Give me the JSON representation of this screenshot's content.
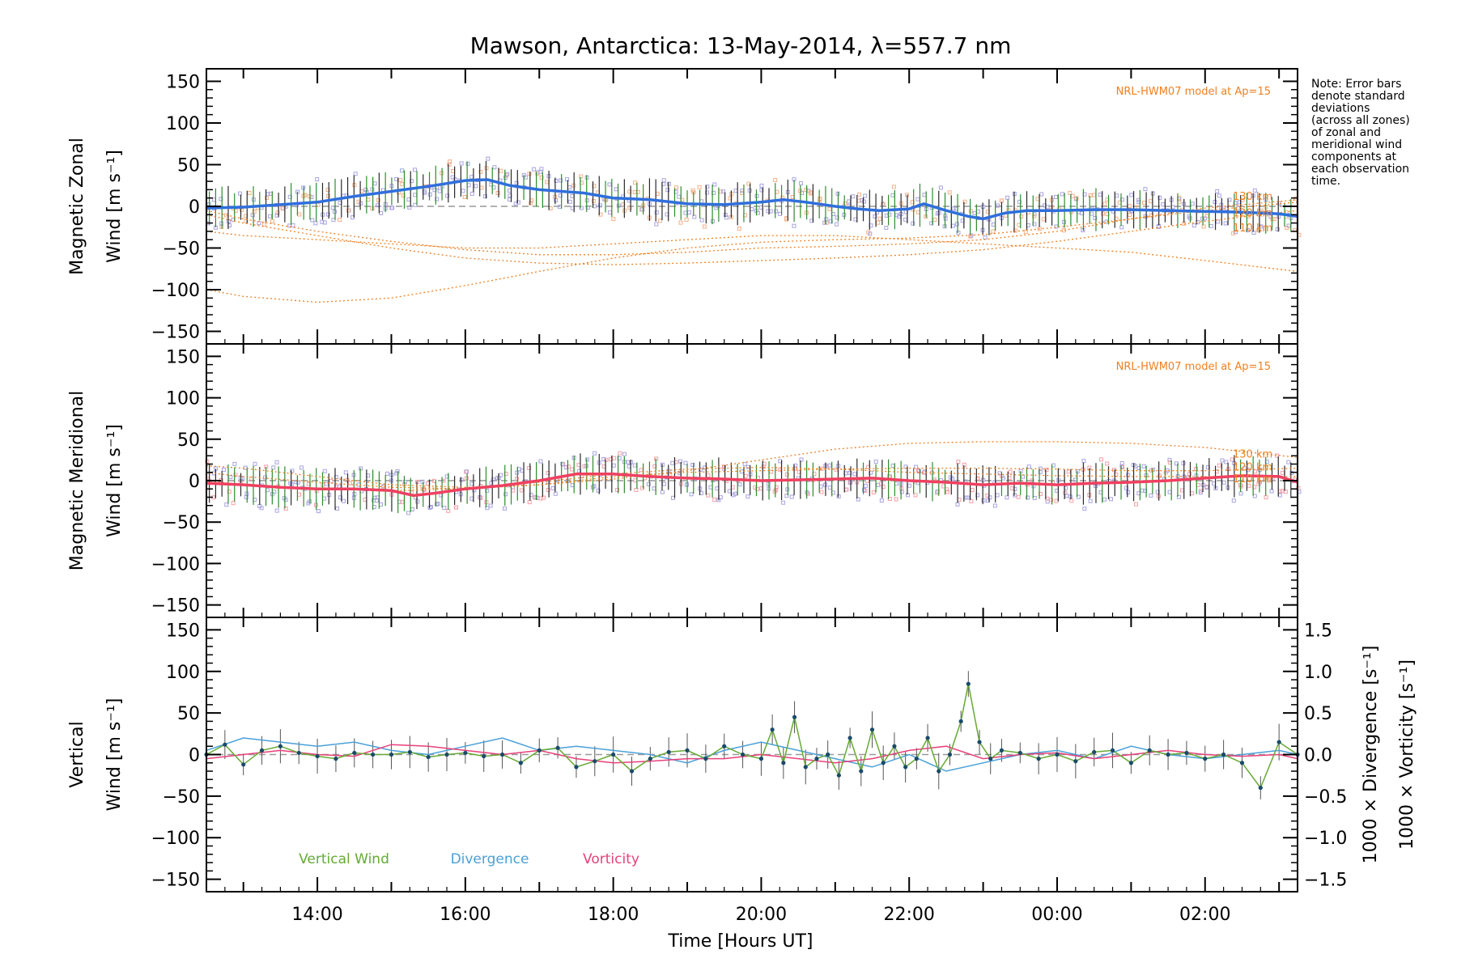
{
  "title": "Mawson, Antarctica: 13-May-2014, λ=557.7 nm",
  "note_lines": [
    "Note: Error bars",
    "denote standard",
    "deviations",
    "(across all zones)",
    "of zonal and",
    "meridional wind",
    "components at",
    "each observation",
    "time."
  ],
  "x_tick_labels": [
    "14:00",
    "16:00",
    "18:00",
    "20:00",
    "22:00",
    "00:00",
    "02:00"
  ],
  "x_label": "Time [Hours UT]",
  "colors": {
    "zonal": "#2f6fdc",
    "meridional": "#f04060",
    "vertical": "#66aa33",
    "divergence": "#4aa0d8",
    "vorticity": "#e8407a",
    "model": "#f08020",
    "scatter": "#a8a4e0",
    "errbar_dark": "#2a2a2a",
    "errbar_green": "#2e8b2e"
  },
  "chart_data": [
    {
      "type": "line",
      "panel": "zonal",
      "ylabel_line1": "Magnetic Zonal",
      "ylabel_line2": "Wind [m s⁻¹]",
      "model_label": "NRL-HWM07 model at Ap=15",
      "model_alt_labels": [
        "130 km",
        "120 km",
        "110 km"
      ],
      "ylim": [
        -165,
        165
      ],
      "xlim": [
        12.5,
        27.25
      ],
      "y_tick_labels": [
        "150",
        "100",
        "50",
        "0",
        "−50",
        "−100",
        "−150"
      ],
      "series": [
        {
          "name": "zonal",
          "x": [
            12.5,
            13,
            13.5,
            14,
            14.5,
            15,
            15.5,
            16,
            16.3,
            16.6,
            17,
            17.3,
            17.6,
            18,
            18.5,
            19,
            19.5,
            20,
            20.3,
            20.6,
            21,
            21.3,
            21.6,
            22,
            22.2,
            22.5,
            22.8,
            23,
            23.3,
            23.6,
            24,
            24.5,
            25,
            25.5,
            26,
            26.5,
            27,
            27.25
          ],
          "y": [
            -2,
            -1,
            2,
            5,
            12,
            18,
            24,
            31,
            32,
            25,
            20,
            18,
            16,
            10,
            8,
            3,
            2,
            5,
            8,
            5,
            0,
            -3,
            -5,
            -3,
            3,
            -5,
            -12,
            -15,
            -8,
            -5,
            -5,
            -4,
            -4,
            -5,
            -6,
            -7,
            -9,
            -12
          ]
        }
      ],
      "model_curves": [
        {
          "x": [
            12.5,
            13,
            14,
            15,
            16,
            17,
            18,
            19,
            20,
            21,
            22,
            23,
            24,
            25,
            26,
            27.25
          ],
          "y": [
            -100,
            -108,
            -115,
            -110,
            -95,
            -78,
            -62,
            -50,
            -43,
            -40,
            -38,
            -34,
            -25,
            -15,
            -5,
            5
          ]
        },
        {
          "x": [
            12.5,
            13,
            14,
            15,
            16,
            17,
            18,
            19,
            20,
            21,
            22,
            23,
            24,
            25,
            26,
            27.25
          ],
          "y": [
            -5,
            -15,
            -30,
            -42,
            -52,
            -58,
            -58,
            -55,
            -50,
            -48,
            -45,
            -40,
            -30,
            -15,
            -2,
            8
          ]
        },
        {
          "x": [
            12.5,
            13,
            14,
            15,
            16,
            17,
            18,
            19,
            20,
            21,
            22,
            23,
            24,
            25,
            26,
            27.25
          ],
          "y": [
            -10,
            -20,
            -35,
            -50,
            -62,
            -68,
            -70,
            -68,
            -65,
            -62,
            -58,
            -52,
            -42,
            -30,
            -18,
            -5
          ]
        },
        {
          "x": [
            12.5,
            13,
            14,
            15,
            16,
            17,
            18,
            19,
            20,
            21,
            22,
            23,
            24,
            25,
            26,
            27.25
          ],
          "y": [
            -30,
            -35,
            -40,
            -45,
            -50,
            -50,
            -45,
            -40,
            -35,
            -35,
            -40,
            -45,
            -50,
            -55,
            -65,
            -78
          ]
        }
      ]
    },
    {
      "type": "line",
      "panel": "meridional",
      "ylabel_line1": "Magnetic Meridional",
      "ylabel_line2": "Wind [m s⁻¹]",
      "model_label": "NRL-HWM07 model at Ap=15",
      "model_alt_labels": [
        "130 km",
        "120 km",
        "110 km"
      ],
      "ylim": [
        -165,
        165
      ],
      "xlim": [
        12.5,
        27.25
      ],
      "y_tick_labels": [
        "150",
        "100",
        "50",
        "0",
        "−50",
        "−100",
        "−150"
      ],
      "series": [
        {
          "name": "meridional",
          "x": [
            12.5,
            13,
            13.5,
            14,
            14.5,
            15,
            15.3,
            15.6,
            16,
            16.5,
            17,
            17.5,
            18,
            18.5,
            19,
            19.5,
            20,
            20.5,
            21,
            21.5,
            22,
            22.5,
            23,
            23.5,
            24,
            24.5,
            25,
            25.5,
            26,
            26.5,
            27,
            27.25
          ],
          "y": [
            -3,
            -5,
            -8,
            -10,
            -10,
            -12,
            -18,
            -15,
            -10,
            -6,
            0,
            8,
            8,
            5,
            3,
            2,
            0,
            1,
            2,
            3,
            0,
            -2,
            -5,
            -3,
            -5,
            -3,
            -2,
            0,
            3,
            6,
            5,
            -2
          ]
        }
      ],
      "model_curves": [
        {
          "x": [
            12.5,
            13,
            14,
            15,
            16,
            17,
            18,
            19,
            20,
            21,
            22,
            23,
            24,
            25,
            26,
            27.25
          ],
          "y": [
            18,
            15,
            5,
            -5,
            -8,
            -5,
            2,
            12,
            25,
            38,
            45,
            47,
            47,
            45,
            40,
            28
          ]
        },
        {
          "x": [
            12.5,
            13,
            14,
            15,
            16,
            17,
            18,
            19,
            20,
            21,
            22,
            23,
            24,
            25,
            26,
            27.25
          ],
          "y": [
            10,
            5,
            -2,
            -8,
            -10,
            -5,
            5,
            10,
            12,
            14,
            15,
            15,
            14,
            12,
            12,
            15
          ]
        },
        {
          "x": [
            12.5,
            13,
            14,
            15,
            16,
            17,
            18,
            19,
            20,
            21,
            22,
            23,
            24,
            25,
            26,
            27.25
          ],
          "y": [
            0,
            -5,
            -10,
            -12,
            -10,
            -2,
            8,
            14,
            16,
            14,
            10,
            8,
            6,
            5,
            5,
            5
          ]
        }
      ]
    },
    {
      "type": "line",
      "panel": "vertical",
      "ylabel_line1": "Vertical",
      "ylabel_line2": "Wind [m s⁻¹]",
      "ylabel_right1": "1000 × Divergence [s⁻¹]",
      "ylabel_right2": "1000 × Vorticity [s⁻¹]",
      "ylim": [
        -165,
        165
      ],
      "y2lim": [
        -1.65,
        1.65
      ],
      "xlim": [
        12.5,
        27.25
      ],
      "y_tick_labels": [
        "150",
        "100",
        "50",
        "0",
        "−50",
        "−100",
        "−150"
      ],
      "y2_tick_labels": [
        "1.5",
        "1.0",
        "0.5",
        "0.0",
        "−0.5",
        "−1.0",
        "−1.5"
      ],
      "legend": [
        "Vertical Wind",
        "Divergence",
        "Vorticity"
      ],
      "series": [
        {
          "name": "Vertical Wind",
          "x": [
            12.5,
            12.75,
            13,
            13.25,
            13.5,
            13.75,
            14,
            14.25,
            14.5,
            14.75,
            15,
            15.25,
            15.5,
            15.75,
            16,
            16.25,
            16.5,
            16.75,
            17,
            17.25,
            17.5,
            17.75,
            18,
            18.25,
            18.5,
            18.75,
            19,
            19.25,
            19.5,
            19.75,
            20,
            20.15,
            20.3,
            20.45,
            20.6,
            20.75,
            20.9,
            21.05,
            21.2,
            21.35,
            21.5,
            21.65,
            21.8,
            21.95,
            22.1,
            22.25,
            22.4,
            22.55,
            22.7,
            22.8,
            22.95,
            23.1,
            23.25,
            23.5,
            23.75,
            24,
            24.25,
            24.5,
            24.75,
            25,
            25.25,
            25.5,
            25.75,
            26,
            26.25,
            26.5,
            26.75,
            27,
            27.25
          ],
          "y": [
            0,
            12,
            -12,
            5,
            10,
            2,
            -2,
            -5,
            2,
            0,
            0,
            3,
            -3,
            0,
            2,
            -2,
            0,
            -10,
            5,
            8,
            -15,
            -8,
            0,
            -20,
            -5,
            3,
            5,
            -5,
            10,
            0,
            -5,
            30,
            -10,
            45,
            -15,
            -5,
            0,
            -25,
            20,
            -20,
            30,
            -10,
            10,
            -15,
            -5,
            20,
            -20,
            0,
            40,
            85,
            15,
            -5,
            5,
            2,
            -5,
            0,
            -8,
            3,
            5,
            -10,
            5,
            0,
            2,
            -5,
            0,
            -10,
            -40,
            15,
            0
          ]
        },
        {
          "name": "Divergence",
          "x": [
            12.5,
            13,
            13.5,
            14,
            14.5,
            15,
            15.5,
            16,
            16.5,
            17,
            17.5,
            18,
            18.5,
            19,
            19.5,
            20,
            20.5,
            21,
            21.5,
            22,
            22.5,
            23,
            23.5,
            24,
            24.5,
            25,
            25.5,
            26,
            26.5,
            27,
            27.25
          ],
          "y": [
            0.05,
            0.2,
            0.15,
            0.1,
            0.15,
            0.05,
            0.0,
            0.1,
            0.2,
            0.05,
            0.1,
            0.05,
            0.0,
            -0.1,
            0.05,
            0.15,
            0.05,
            -0.05,
            -0.15,
            0.0,
            -0.2,
            -0.1,
            0.0,
            0.05,
            -0.05,
            0.1,
            0.0,
            -0.05,
            0.0,
            0.05,
            0.0
          ]
        },
        {
          "name": "Vorticity",
          "x": [
            12.5,
            13,
            13.5,
            14,
            14.5,
            15,
            15.5,
            16,
            16.5,
            17,
            17.5,
            18,
            18.5,
            19,
            19.5,
            20,
            20.5,
            21,
            21.5,
            22,
            22.5,
            23,
            23.5,
            24,
            24.5,
            25,
            25.5,
            26,
            26.5,
            27,
            27.25
          ],
          "y": [
            -0.05,
            0.0,
            0.05,
            0.0,
            -0.02,
            0.12,
            0.1,
            0.05,
            0.0,
            0.05,
            -0.05,
            -0.1,
            -0.08,
            -0.05,
            -0.05,
            0.0,
            -0.05,
            -0.1,
            -0.05,
            0.05,
            0.1,
            -0.05,
            0.0,
            0.02,
            -0.05,
            0.0,
            0.05,
            0.0,
            -0.02,
            0.0,
            -0.05
          ]
        }
      ]
    }
  ]
}
